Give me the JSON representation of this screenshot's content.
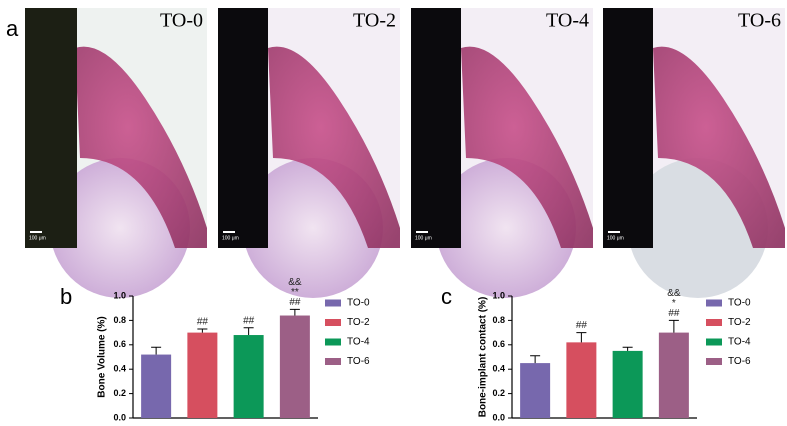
{
  "panel_labels": [
    "a",
    "b",
    "c"
  ],
  "images": [
    {
      "label": "TO-0",
      "scale_bar": "100 μm"
    },
    {
      "label": "TO-2",
      "scale_bar": "100 μm"
    },
    {
      "label": "TO-4",
      "scale_bar": "100 μm"
    },
    {
      "label": "TO-6",
      "scale_bar": "100 μm"
    }
  ],
  "chart_data": [
    {
      "type": "bar",
      "y_label": "Bone Volume (%)",
      "categories": [
        "TO-0",
        "TO-2",
        "TO-4",
        "TO-6"
      ],
      "colors": [
        "#7768ad",
        "#d64f5f",
        "#0c9858",
        "#9c5f86"
      ],
      "values": [
        0.52,
        0.7,
        0.68,
        0.84
      ],
      "errors": [
        0.06,
        0.03,
        0.06,
        0.05
      ],
      "annotations": [
        null,
        [
          "##"
        ],
        [
          "##"
        ],
        [
          "&&",
          "**",
          "##"
        ]
      ],
      "ylim": [
        0,
        1.0
      ],
      "yticks": [
        {
          "value": 0,
          "label": "0.0"
        },
        {
          "value": 0.2,
          "label": "0.2"
        },
        {
          "value": 0.4,
          "label": "0.4"
        },
        {
          "value": 0.6,
          "label": "0.6"
        },
        {
          "value": 0.8,
          "label": "0.8"
        },
        {
          "value": 1.0,
          "label": "1.0"
        }
      ],
      "legend": "right"
    },
    {
      "type": "bar",
      "y_label": "Bone-implant contact (%)",
      "categories": [
        "TO-0",
        "TO-2",
        "TO-4",
        "TO-6"
      ],
      "colors": [
        "#7768ad",
        "#d64f5f",
        "#0c9858",
        "#9c5f86"
      ],
      "values": [
        0.45,
        0.62,
        0.55,
        0.7
      ],
      "errors": [
        0.06,
        0.08,
        0.03,
        0.1
      ],
      "annotations": [
        null,
        [
          "##"
        ],
        null,
        [
          "&&",
          "*",
          "##"
        ]
      ],
      "ylim": [
        0,
        1.0
      ],
      "yticks": [
        {
          "value": 0,
          "label": "0.0"
        },
        {
          "value": 0.2,
          "label": "0.2"
        },
        {
          "value": 0.4,
          "label": "0.4"
        },
        {
          "value": 0.6,
          "label": "0.6"
        },
        {
          "value": 0.8,
          "label": "0.8"
        },
        {
          "value": 1.0,
          "label": "1.0"
        }
      ],
      "legend": "right"
    }
  ]
}
